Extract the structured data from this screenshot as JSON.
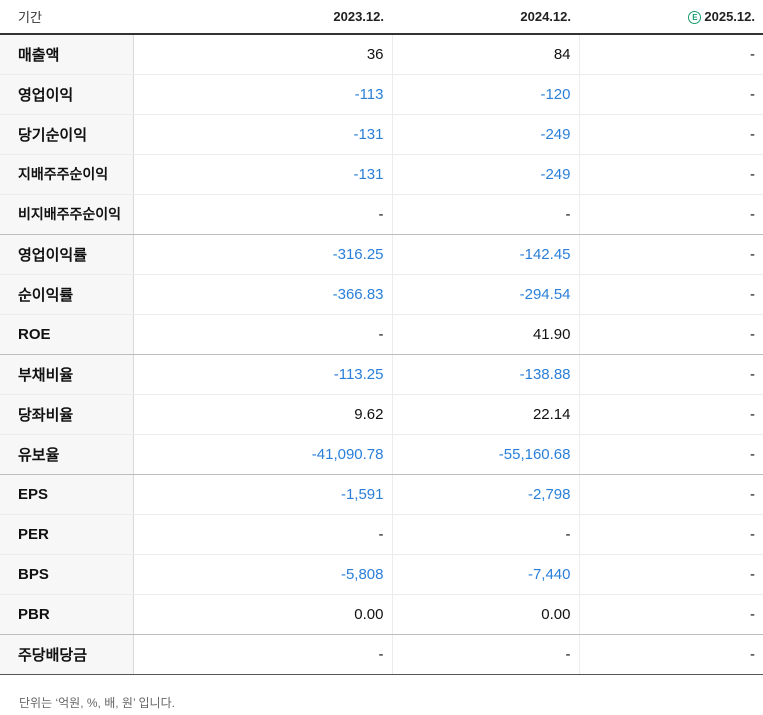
{
  "header": {
    "label": "기간",
    "periods": [
      "2023.12.",
      "2024.12.",
      "2025.12."
    ],
    "estimate_badge": "E"
  },
  "rows": [
    {
      "label": "매출액",
      "values": [
        "36",
        "84",
        "-"
      ]
    },
    {
      "label": "영업이익",
      "values": [
        "-113",
        "-120",
        "-"
      ]
    },
    {
      "label": "당기순이익",
      "values": [
        "-131",
        "-249",
        "-"
      ]
    },
    {
      "label": "지배주주순이익",
      "values": [
        "-131",
        "-249",
        "-"
      ]
    },
    {
      "label": "비지배주주순이익",
      "values": [
        "-",
        "-",
        "-"
      ]
    },
    {
      "label": "영업이익률",
      "values": [
        "-316.25",
        "-142.45",
        "-"
      ]
    },
    {
      "label": "순이익률",
      "values": [
        "-366.83",
        "-294.54",
        "-"
      ]
    },
    {
      "label": "ROE",
      "values": [
        "-",
        "41.90",
        "-"
      ]
    },
    {
      "label": "부채비율",
      "values": [
        "-113.25",
        "-138.88",
        "-"
      ]
    },
    {
      "label": "당좌비율",
      "values": [
        "9.62",
        "22.14",
        "-"
      ]
    },
    {
      "label": "유보율",
      "values": [
        "-41,090.78",
        "-55,160.68",
        "-"
      ]
    },
    {
      "label": "EPS",
      "values": [
        "-1,591",
        "-2,798",
        "-"
      ]
    },
    {
      "label": "PER",
      "values": [
        "-",
        "-",
        "-"
      ]
    },
    {
      "label": "BPS",
      "values": [
        "-5,808",
        "-7,440",
        "-"
      ]
    },
    {
      "label": "PBR",
      "values": [
        "0.00",
        "0.00",
        "-"
      ]
    },
    {
      "label": "주당배당금",
      "values": [
        "-",
        "-",
        "-"
      ]
    }
  ],
  "footer": "단위는 ‘억원, %, 배, 원’ 입니다.",
  "colors": {
    "negative": "#2a7fd8",
    "estimate": "#1a9e6e"
  }
}
